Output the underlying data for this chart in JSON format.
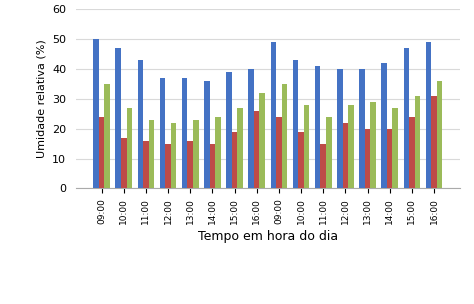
{
  "x_labels": [
    "09:00",
    "10:00",
    "11:00",
    "12:00",
    "13:00",
    "14:00",
    "15:00",
    "16:00",
    "09:00",
    "10:00",
    "11:00",
    "12:00",
    "13:00",
    "14:00",
    "15:00",
    "16:00"
  ],
  "sensor_A": [
    50,
    47,
    43,
    37,
    37,
    36,
    39,
    40,
    49,
    43,
    41,
    40,
    40,
    42,
    47,
    49
  ],
  "sensor_B": [
    24,
    17,
    16,
    15,
    16,
    15,
    19,
    26,
    24,
    19,
    15,
    22,
    20,
    20,
    24,
    31
  ],
  "sensor_C": [
    35,
    27,
    23,
    22,
    23,
    24,
    27,
    32,
    35,
    28,
    24,
    28,
    29,
    27,
    31,
    36
  ],
  "color_A": "#4472C4",
  "color_B": "#BE4B48",
  "color_C": "#9BBB59",
  "ylabel": "Umidade relativa (%)",
  "xlabel": "Tempo em hora do dia",
  "ylim": [
    0,
    60
  ],
  "yticks": [
    0,
    10,
    20,
    30,
    40,
    50,
    60
  ],
  "bar_width": 0.25,
  "background_color": "#ffffff",
  "grid_color": "#d9d9d9"
}
